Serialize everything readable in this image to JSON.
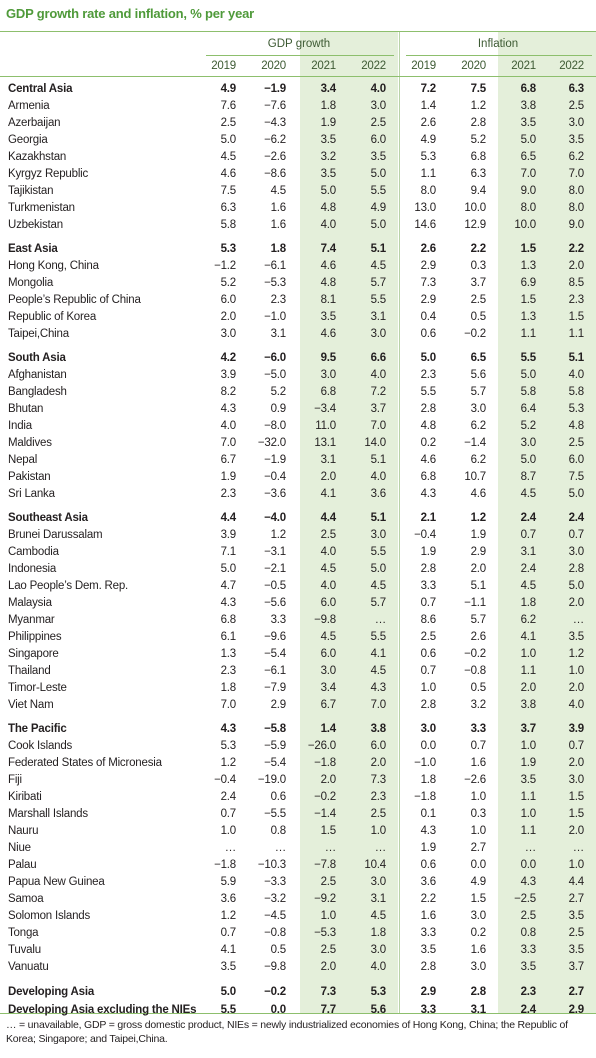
{
  "title": "GDP growth rate and inflation, % per year",
  "header": {
    "groups": [
      "GDP growth",
      "Inflation"
    ],
    "years": [
      "2019",
      "2020",
      "2021",
      "2022",
      "2019",
      "2020",
      "2021",
      "2022"
    ]
  },
  "sections": [
    {
      "aggregate": {
        "label": "Central Asia",
        "values": [
          "4.9",
          "−1.9",
          "3.4",
          "4.0",
          "7.2",
          "7.5",
          "6.8",
          "6.3"
        ]
      },
      "rows": [
        {
          "label": "Armenia",
          "values": [
            "7.6",
            "−7.6",
            "1.8",
            "3.0",
            "1.4",
            "1.2",
            "3.8",
            "2.5"
          ]
        },
        {
          "label": "Azerbaijan",
          "values": [
            "2.5",
            "−4.3",
            "1.9",
            "2.5",
            "2.6",
            "2.8",
            "3.5",
            "3.0"
          ]
        },
        {
          "label": "Georgia",
          "values": [
            "5.0",
            "−6.2",
            "3.5",
            "6.0",
            "4.9",
            "5.2",
            "5.0",
            "3.5"
          ]
        },
        {
          "label": "Kazakhstan",
          "values": [
            "4.5",
            "−2.6",
            "3.2",
            "3.5",
            "5.3",
            "6.8",
            "6.5",
            "6.2"
          ]
        },
        {
          "label": "Kyrgyz Republic",
          "values": [
            "4.6",
            "−8.6",
            "3.5",
            "5.0",
            "1.1",
            "6.3",
            "7.0",
            "7.0"
          ]
        },
        {
          "label": "Tajikistan",
          "values": [
            "7.5",
            "4.5",
            "5.0",
            "5.5",
            "8.0",
            "9.4",
            "9.0",
            "8.0"
          ]
        },
        {
          "label": "Turkmenistan",
          "values": [
            "6.3",
            "1.6",
            "4.8",
            "4.9",
            "13.0",
            "10.0",
            "8.0",
            "8.0"
          ]
        },
        {
          "label": "Uzbekistan",
          "values": [
            "5.8",
            "1.6",
            "4.0",
            "5.0",
            "14.6",
            "12.9",
            "10.0",
            "9.0"
          ]
        }
      ]
    },
    {
      "aggregate": {
        "label": "East Asia",
        "values": [
          "5.3",
          "1.8",
          "7.4",
          "5.1",
          "2.6",
          "2.2",
          "1.5",
          "2.2"
        ]
      },
      "rows": [
        {
          "label": "Hong Kong, China",
          "values": [
            "−1.2",
            "−6.1",
            "4.6",
            "4.5",
            "2.9",
            "0.3",
            "1.3",
            "2.0"
          ]
        },
        {
          "label": "Mongolia",
          "values": [
            "5.2",
            "−5.3",
            "4.8",
            "5.7",
            "7.3",
            "3.7",
            "6.9",
            "8.5"
          ]
        },
        {
          "label": "People’s Republic of China",
          "values": [
            "6.0",
            "2.3",
            "8.1",
            "5.5",
            "2.9",
            "2.5",
            "1.5",
            "2.3"
          ]
        },
        {
          "label": "Republic of Korea",
          "values": [
            "2.0",
            "−1.0",
            "3.5",
            "3.1",
            "0.4",
            "0.5",
            "1.3",
            "1.5"
          ]
        },
        {
          "label": "Taipei,China",
          "values": [
            "3.0",
            "3.1",
            "4.6",
            "3.0",
            "0.6",
            "−0.2",
            "1.1",
            "1.1"
          ]
        }
      ]
    },
    {
      "aggregate": {
        "label": "South Asia",
        "values": [
          "4.2",
          "−6.0",
          "9.5",
          "6.6",
          "5.0",
          "6.5",
          "5.5",
          "5.1"
        ]
      },
      "rows": [
        {
          "label": "Afghanistan",
          "values": [
            "3.9",
            "−5.0",
            "3.0",
            "4.0",
            "2.3",
            "5.6",
            "5.0",
            "4.0"
          ]
        },
        {
          "label": "Bangladesh",
          "values": [
            "8.2",
            "5.2",
            "6.8",
            "7.2",
            "5.5",
            "5.7",
            "5.8",
            "5.8"
          ]
        },
        {
          "label": "Bhutan",
          "values": [
            "4.3",
            "0.9",
            "−3.4",
            "3.7",
            "2.8",
            "3.0",
            "6.4",
            "5.3"
          ]
        },
        {
          "label": "India",
          "values": [
            "4.0",
            "−8.0",
            "11.0",
            "7.0",
            "4.8",
            "6.2",
            "5.2",
            "4.8"
          ]
        },
        {
          "label": "Maldives",
          "values": [
            "7.0",
            "−32.0",
            "13.1",
            "14.0",
            "0.2",
            "−1.4",
            "3.0",
            "2.5"
          ]
        },
        {
          "label": "Nepal",
          "values": [
            "6.7",
            "−1.9",
            "3.1",
            "5.1",
            "4.6",
            "6.2",
            "5.0",
            "6.0"
          ]
        },
        {
          "label": "Pakistan",
          "values": [
            "1.9",
            "−0.4",
            "2.0",
            "4.0",
            "6.8",
            "10.7",
            "8.7",
            "7.5"
          ]
        },
        {
          "label": "Sri Lanka",
          "values": [
            "2.3",
            "−3.6",
            "4.1",
            "3.6",
            "4.3",
            "4.6",
            "4.5",
            "5.0"
          ]
        }
      ]
    },
    {
      "aggregate": {
        "label": "Southeast Asia",
        "values": [
          "4.4",
          "−4.0",
          "4.4",
          "5.1",
          "2.1",
          "1.2",
          "2.4",
          "2.4"
        ]
      },
      "rows": [
        {
          "label": "Brunei Darussalam",
          "values": [
            "3.9",
            "1.2",
            "2.5",
            "3.0",
            "−0.4",
            "1.9",
            "0.7",
            "0.7"
          ]
        },
        {
          "label": "Cambodia",
          "values": [
            "7.1",
            "−3.1",
            "4.0",
            "5.5",
            "1.9",
            "2.9",
            "3.1",
            "3.0"
          ]
        },
        {
          "label": "Indonesia",
          "values": [
            "5.0",
            "−2.1",
            "4.5",
            "5.0",
            "2.8",
            "2.0",
            "2.4",
            "2.8"
          ]
        },
        {
          "label": "Lao People’s Dem. Rep.",
          "values": [
            "4.7",
            "−0.5",
            "4.0",
            "4.5",
            "3.3",
            "5.1",
            "4.5",
            "5.0"
          ]
        },
        {
          "label": "Malaysia",
          "values": [
            "4.3",
            "−5.6",
            "6.0",
            "5.7",
            "0.7",
            "−1.1",
            "1.8",
            "2.0"
          ]
        },
        {
          "label": "Myanmar",
          "values": [
            "6.8",
            "3.3",
            "−9.8",
            "…",
            "8.6",
            "5.7",
            "6.2",
            "…"
          ]
        },
        {
          "label": "Philippines",
          "values": [
            "6.1",
            "−9.6",
            "4.5",
            "5.5",
            "2.5",
            "2.6",
            "4.1",
            "3.5"
          ]
        },
        {
          "label": "Singapore",
          "values": [
            "1.3",
            "−5.4",
            "6.0",
            "4.1",
            "0.6",
            "−0.2",
            "1.0",
            "1.2"
          ]
        },
        {
          "label": "Thailand",
          "values": [
            "2.3",
            "−6.1",
            "3.0",
            "4.5",
            "0.7",
            "−0.8",
            "1.1",
            "1.0"
          ]
        },
        {
          "label": "Timor-Leste",
          "values": [
            "1.8",
            "−7.9",
            "3.4",
            "4.3",
            "1.0",
            "0.5",
            "2.0",
            "2.0"
          ]
        },
        {
          "label": "Viet Nam",
          "values": [
            "7.0",
            "2.9",
            "6.7",
            "7.0",
            "2.8",
            "3.2",
            "3.8",
            "4.0"
          ]
        }
      ]
    },
    {
      "aggregate": {
        "label": "The Pacific",
        "values": [
          "4.3",
          "−5.8",
          "1.4",
          "3.8",
          "3.0",
          "3.3",
          "3.7",
          "3.9"
        ]
      },
      "rows": [
        {
          "label": "Cook Islands",
          "values": [
            "5.3",
            "−5.9",
            "−26.0",
            "6.0",
            "0.0",
            "0.7",
            "1.0",
            "0.7"
          ]
        },
        {
          "label": "Federated States of Micronesia",
          "values": [
            "1.2",
            "−5.4",
            "−1.8",
            "2.0",
            "−1.0",
            "1.6",
            "1.9",
            "2.0"
          ]
        },
        {
          "label": "Fiji",
          "values": [
            "−0.4",
            "−19.0",
            "2.0",
            "7.3",
            "1.8",
            "−2.6",
            "3.5",
            "3.0"
          ]
        },
        {
          "label": "Kiribati",
          "values": [
            "2.4",
            "0.6",
            "−0.2",
            "2.3",
            "−1.8",
            "1.0",
            "1.1",
            "1.5"
          ]
        },
        {
          "label": "Marshall Islands",
          "values": [
            "0.7",
            "−5.5",
            "−1.4",
            "2.5",
            "0.1",
            "0.3",
            "1.0",
            "1.5"
          ]
        },
        {
          "label": "Nauru",
          "values": [
            "1.0",
            "0.8",
            "1.5",
            "1.0",
            "4.3",
            "1.0",
            "1.1",
            "2.0"
          ]
        },
        {
          "label": "Niue",
          "values": [
            "…",
            "…",
            "…",
            "…",
            "1.9",
            "2.7",
            "…",
            "…"
          ]
        },
        {
          "label": "Palau",
          "values": [
            "−1.8",
            "−10.3",
            "−7.8",
            "10.4",
            "0.6",
            "0.0",
            "0.0",
            "1.0"
          ]
        },
        {
          "label": "Papua New Guinea",
          "values": [
            "5.9",
            "−3.3",
            "2.5",
            "3.0",
            "3.6",
            "4.9",
            "4.3",
            "4.4"
          ]
        },
        {
          "label": "Samoa",
          "values": [
            "3.6",
            "−3.2",
            "−9.2",
            "3.1",
            "2.2",
            "1.5",
            "−2.5",
            "2.7"
          ]
        },
        {
          "label": "Solomon Islands",
          "values": [
            "1.2",
            "−4.5",
            "1.0",
            "4.5",
            "1.6",
            "3.0",
            "2.5",
            "3.5"
          ]
        },
        {
          "label": "Tonga",
          "values": [
            "0.7",
            "−0.8",
            "−5.3",
            "1.8",
            "3.3",
            "0.2",
            "0.8",
            "2.5"
          ]
        },
        {
          "label": "Tuvalu",
          "values": [
            "4.1",
            "0.5",
            "2.5",
            "3.0",
            "3.5",
            "1.6",
            "3.3",
            "3.5"
          ]
        },
        {
          "label": "Vanuatu",
          "values": [
            "3.5",
            "−9.8",
            "2.0",
            "4.0",
            "2.8",
            "3.0",
            "3.5",
            "3.7"
          ]
        }
      ]
    }
  ],
  "totals": [
    {
      "label": "Developing Asia",
      "values": [
        "5.0",
        "−0.2",
        "7.3",
        "5.3",
        "2.9",
        "2.8",
        "2.3",
        "2.7"
      ]
    },
    {
      "label": "Developing Asia excluding the NIEs",
      "values": [
        "5.5",
        "0.0",
        "7.7",
        "5.6",
        "3.3",
        "3.1",
        "2.4",
        "2.9"
      ]
    }
  ],
  "footnote": "… = unavailable, GDP = gross domestic product, NIEs = newly industrialized economies of Hong Kong, China; the Republic of Korea; Singapore; and Taipei,China."
}
